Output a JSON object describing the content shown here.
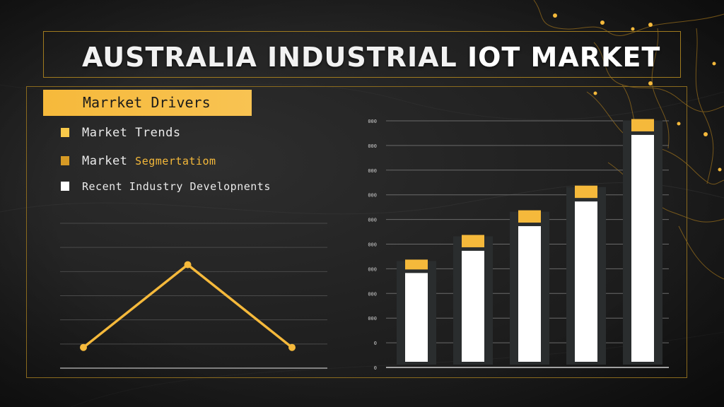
{
  "header": {
    "title_part1": "AUSTRALIA INDUSTRIAL ",
    "title_part2": "IOT MARKET"
  },
  "sidebar": {
    "highlight_label": "Marrket Drivers",
    "items": [
      {
        "label": "Market Trends",
        "color": "#f8c94a"
      },
      {
        "label": "Market",
        "label_suffix": "Segmertatiom",
        "color": "#d69a25"
      },
      {
        "label": "Recent  Industry Developnents",
        "color": "#ffffff"
      }
    ]
  },
  "colors": {
    "accent": "#f5b93b",
    "frame": "#8a6a1e",
    "bar_white": "#ffffff",
    "bar_dark": "#2a2d2e",
    "map_line": "#c28a1d"
  },
  "chart_data": [
    {
      "type": "line",
      "x": [
        0,
        1,
        2
      ],
      "values": [
        1,
        5,
        1
      ],
      "ylim": [
        0,
        7
      ],
      "grid": true
    },
    {
      "type": "bar",
      "series": [
        {
          "values": [
            36,
            45,
            55,
            65,
            92
          ]
        },
        {
          "values": [
            4,
            5,
            5,
            5,
            5
          ]
        }
      ],
      "stacked": true,
      "ylim": [
        0,
        100
      ],
      "ytick_labels": [
        "0",
        "0",
        "000",
        "000",
        "000",
        "000",
        "000",
        "000",
        "000",
        "000",
        "000"
      ],
      "grid": true
    }
  ]
}
